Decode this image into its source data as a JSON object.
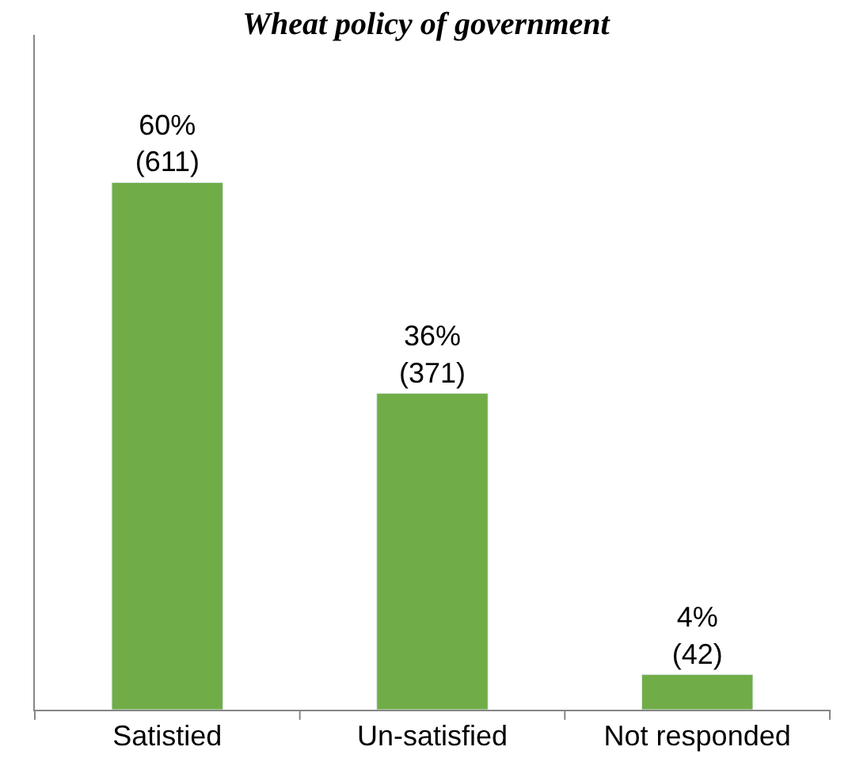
{
  "chart_data": {
    "type": "bar",
    "title": "Wheat policy of government",
    "categories": [
      "Satistied",
      "Un-satisfied",
      "Not responded"
    ],
    "values": [
      60,
      36,
      4
    ],
    "value_labels": [
      "60%\n(611)",
      "36%\n(371)",
      "4%\n(42)"
    ],
    "color": "#70ad47"
  }
}
